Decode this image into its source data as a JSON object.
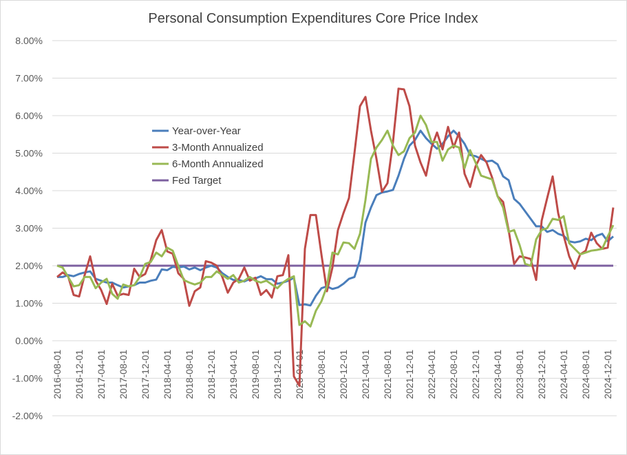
{
  "chart_data": {
    "type": "line",
    "title": "Personal Consumption Expenditures Core Price Index",
    "xlabel": "",
    "ylabel": "",
    "ylim": [
      -2,
      8
    ],
    "yticks": [
      "-2.00%",
      "-1.00%",
      "0.00%",
      "1.00%",
      "2.00%",
      "3.00%",
      "4.00%",
      "5.00%",
      "6.00%",
      "7.00%",
      "8.00%"
    ],
    "x_start": "2016-08-01",
    "x_end": "2025-01-01",
    "frequency": "monthly",
    "xtick_labels": [
      "2016-08-01",
      "2016-12-01",
      "2017-04-01",
      "2017-08-01",
      "2017-12-01",
      "2018-04-01",
      "2018-08-01",
      "2018-12-01",
      "2019-04-01",
      "2019-08-01",
      "2019-12-01",
      "2020-04-01",
      "2020-08-01",
      "2020-12-01",
      "2021-04-01",
      "2021-08-01",
      "2021-12-01",
      "2022-04-01",
      "2022-08-01",
      "2022-12-01",
      "2023-04-01",
      "2023-08-01",
      "2023-12-01",
      "2024-04-01",
      "2024-08-01",
      "2024-12-01"
    ],
    "grid": true,
    "legend_position": "upper-left-inside",
    "series": [
      {
        "name": "Year-over-Year",
        "color": "#4a7ebb",
        "values": [
          1.7,
          1.7,
          1.75,
          1.72,
          1.78,
          1.82,
          1.85,
          1.65,
          1.6,
          1.55,
          1.55,
          1.48,
          1.42,
          1.45,
          1.48,
          1.55,
          1.55,
          1.6,
          1.63,
          1.9,
          1.88,
          1.97,
          1.95,
          1.98,
          1.9,
          1.95,
          1.88,
          1.95,
          2.0,
          1.95,
          1.8,
          1.7,
          1.62,
          1.62,
          1.58,
          1.65,
          1.66,
          1.72,
          1.64,
          1.64,
          1.52,
          1.55,
          1.6,
          1.68,
          0.95,
          0.97,
          0.94,
          1.2,
          1.4,
          1.45,
          1.38,
          1.42,
          1.52,
          1.65,
          1.7,
          2.15,
          3.15,
          3.55,
          3.88,
          3.95,
          3.98,
          4.02,
          4.4,
          4.85,
          5.2,
          5.35,
          5.6,
          5.4,
          5.25,
          5.12,
          5.25,
          5.45,
          5.6,
          5.45,
          5.25,
          4.95,
          4.92,
          4.85,
          4.78,
          4.8,
          4.7,
          4.38,
          4.28,
          3.78,
          3.65,
          3.45,
          3.25,
          3.05,
          3.05,
          2.9,
          2.95,
          2.85,
          2.8,
          2.65,
          2.62,
          2.65,
          2.72,
          2.68,
          2.8,
          2.85,
          2.65,
          2.78
        ]
      },
      {
        "name": "3-Month Annualized",
        "color": "#be4b48",
        "values": [
          1.7,
          1.82,
          1.72,
          1.22,
          1.18,
          1.75,
          2.25,
          1.6,
          1.35,
          0.98,
          1.52,
          1.2,
          1.25,
          1.22,
          1.92,
          1.7,
          1.78,
          2.15,
          2.68,
          2.95,
          2.38,
          2.32,
          1.8,
          1.65,
          0.93,
          1.32,
          1.42,
          2.12,
          2.08,
          2.0,
          1.7,
          1.28,
          1.55,
          1.65,
          1.95,
          1.6,
          1.68,
          1.22,
          1.35,
          1.15,
          1.72,
          1.75,
          2.28,
          -0.95,
          -1.2,
          2.45,
          3.35,
          3.35,
          2.3,
          1.32,
          1.95,
          2.95,
          3.4,
          3.8,
          5.0,
          6.25,
          6.5,
          5.6,
          4.85,
          3.97,
          4.2,
          5.3,
          6.72,
          6.7,
          6.25,
          5.2,
          4.75,
          4.4,
          5.15,
          5.55,
          5.1,
          5.7,
          5.15,
          5.55,
          4.45,
          4.1,
          4.65,
          4.95,
          4.75,
          4.35,
          3.85,
          3.7,
          2.95,
          2.05,
          2.25,
          2.22,
          2.18,
          1.62,
          3.2,
          3.8,
          4.38,
          3.4,
          2.8,
          2.25,
          1.92,
          2.3,
          2.4,
          2.88,
          2.6,
          2.45,
          2.48,
          3.55
        ]
      },
      {
        "name": "6-Month Annualized",
        "color": "#98b954",
        "values": [
          2.0,
          1.95,
          1.7,
          1.45,
          1.48,
          1.7,
          1.7,
          1.4,
          1.55,
          1.65,
          1.25,
          1.12,
          1.5,
          1.45,
          1.48,
          1.7,
          2.05,
          2.1,
          2.35,
          2.25,
          2.48,
          2.4,
          2.0,
          1.62,
          1.55,
          1.5,
          1.55,
          1.7,
          1.7,
          1.85,
          1.75,
          1.65,
          1.75,
          1.55,
          1.6,
          1.7,
          1.6,
          1.55,
          1.6,
          1.5,
          1.4,
          1.55,
          1.65,
          1.72,
          0.42,
          0.52,
          0.38,
          0.8,
          1.05,
          1.45,
          2.35,
          2.3,
          2.62,
          2.6,
          2.45,
          2.85,
          3.75,
          4.85,
          5.15,
          5.35,
          5.6,
          5.2,
          4.95,
          5.05,
          5.4,
          5.55,
          6.0,
          5.75,
          5.3,
          5.3,
          4.8,
          5.1,
          5.2,
          5.15,
          4.6,
          5.08,
          4.75,
          4.4,
          4.35,
          4.3,
          3.85,
          3.55,
          2.9,
          2.95,
          2.55,
          2.05,
          2.0,
          2.7,
          2.95,
          3.0,
          3.25,
          3.22,
          3.32,
          2.6,
          2.45,
          2.3,
          2.35,
          2.4,
          2.42,
          2.45,
          2.78,
          3.08
        ]
      },
      {
        "name": "Fed Target",
        "color": "#7d60a0",
        "constant": 2.0
      }
    ]
  }
}
